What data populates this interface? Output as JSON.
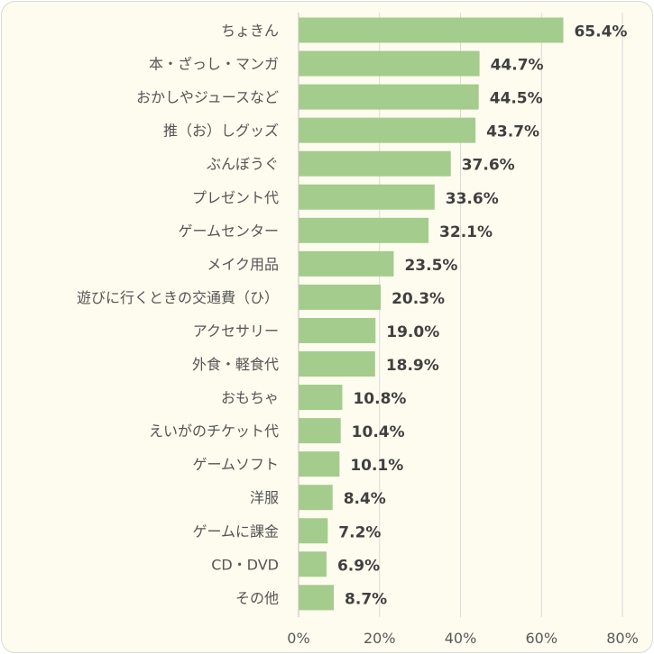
{
  "chart_data": {
    "type": "bar",
    "orientation": "horizontal",
    "title": "",
    "xlabel": "",
    "ylabel": "",
    "categories": [
      "ちょきん",
      "本・ざっし・マンガ",
      "おかしやジュースなど",
      "推（お）しグッズ",
      "ぶんぼうぐ",
      "プレゼント代",
      "ゲームセンター",
      "メイク用品",
      "遊びに行くときの交通費（ひ）",
      "アクセサリー",
      "外食・軽食代",
      "おもちゃ",
      "えいがのチケット代",
      "ゲームソフト",
      "洋服",
      "ゲームに課金",
      "CD・DVD",
      "その他"
    ],
    "values": [
      65.4,
      44.7,
      44.5,
      43.7,
      37.6,
      33.6,
      32.1,
      23.5,
      20.3,
      19.0,
      18.9,
      10.8,
      10.4,
      10.1,
      8.4,
      7.2,
      6.9,
      8.7
    ],
    "value_labels": [
      "65.4%",
      "44.7%",
      "44.5%",
      "43.7%",
      "37.6%",
      "33.6%",
      "32.1%",
      "23.5%",
      "20.3%",
      "19.0%",
      "18.9%",
      "10.8%",
      "10.4%",
      "10.1%",
      "8.4%",
      "7.2%",
      "6.9%",
      "8.7%"
    ],
    "xlim": [
      0,
      80
    ],
    "x_ticks": [
      0,
      20,
      40,
      60,
      80
    ],
    "x_tick_labels": [
      "0%",
      "20%",
      "40%",
      "60%",
      "80%"
    ],
    "grid": true,
    "legend": "none",
    "colors": {
      "bar": "#a4cc8c",
      "background": "#fefcef",
      "grid": "#d9d9d9",
      "axis": "#bfbfbf",
      "label": "#555555",
      "value_label": "#404040"
    }
  }
}
